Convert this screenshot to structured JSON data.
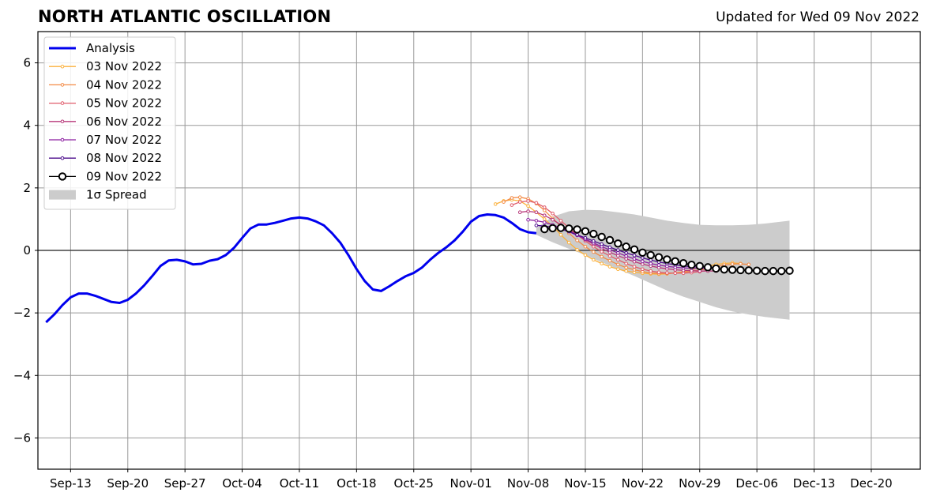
{
  "header": {
    "title": "NORTH ATLANTIC OSCILLATION",
    "updated": "Updated for Wed 09 Nov 2022"
  },
  "chart_data": {
    "type": "line",
    "title": "NORTH ATLANTIC OSCILLATION",
    "subtitle": "Updated for Wed 09 Nov 2022",
    "xlabel": "",
    "ylabel": "",
    "xlim": [
      "2022-09-09",
      "2022-12-26"
    ],
    "ylim": [
      -7,
      7
    ],
    "x_ticks": [
      "Sep-13",
      "Sep-20",
      "Sep-27",
      "Oct-04",
      "Oct-11",
      "Oct-18",
      "Oct-25",
      "Nov-01",
      "Nov-08",
      "Nov-15",
      "Nov-22",
      "Nov-29",
      "Dec-06",
      "Dec-13",
      "Dec-20"
    ],
    "y_ticks": [
      "6",
      "4",
      "2",
      "0",
      "−2",
      "−4",
      "−6"
    ],
    "grid": true,
    "legend_position": "top-left",
    "analysis": {
      "name": "Analysis",
      "color": "#0000ee",
      "x": [
        "2022-09-10",
        "2022-09-11",
        "2022-09-12",
        "2022-09-13",
        "2022-09-14",
        "2022-09-15",
        "2022-09-16",
        "2022-09-17",
        "2022-09-18",
        "2022-09-19",
        "2022-09-20",
        "2022-09-21",
        "2022-09-22",
        "2022-09-23",
        "2022-09-24",
        "2022-09-25",
        "2022-09-26",
        "2022-09-27",
        "2022-09-28",
        "2022-09-29",
        "2022-09-30",
        "2022-10-01",
        "2022-10-02",
        "2022-10-03",
        "2022-10-04",
        "2022-10-05",
        "2022-10-06",
        "2022-10-07",
        "2022-10-08",
        "2022-10-09",
        "2022-10-10",
        "2022-10-11",
        "2022-10-12",
        "2022-10-13",
        "2022-10-14",
        "2022-10-15",
        "2022-10-16",
        "2022-10-17",
        "2022-10-18",
        "2022-10-19",
        "2022-10-20",
        "2022-10-21",
        "2022-10-22",
        "2022-10-23",
        "2022-10-24",
        "2022-10-25",
        "2022-10-26",
        "2022-10-27",
        "2022-10-28",
        "2022-10-29",
        "2022-10-30",
        "2022-10-31",
        "2022-11-01",
        "2022-11-02",
        "2022-11-03",
        "2022-11-04",
        "2022-11-05",
        "2022-11-06",
        "2022-11-07",
        "2022-11-08",
        "2022-11-09"
      ],
      "y": [
        -2.3,
        -2.05,
        -1.75,
        -1.5,
        -1.38,
        -1.38,
        -1.45,
        -1.55,
        -1.65,
        -1.68,
        -1.58,
        -1.38,
        -1.12,
        -0.82,
        -0.5,
        -0.32,
        -0.3,
        -0.35,
        -0.45,
        -0.43,
        -0.33,
        -0.28,
        -0.15,
        0.08,
        0.4,
        0.7,
        0.83,
        0.83,
        0.88,
        0.95,
        1.02,
        1.05,
        1.02,
        0.93,
        0.8,
        0.55,
        0.25,
        -0.15,
        -0.6,
        -0.98,
        -1.25,
        -1.3,
        -1.15,
        -0.98,
        -0.83,
        -0.72,
        -0.55,
        -0.3,
        -0.08,
        0.1,
        0.32,
        0.6,
        0.92,
        1.1,
        1.15,
        1.13,
        1.05,
        0.88,
        0.68,
        0.58,
        0.55
      ]
    },
    "series": [
      {
        "name": "03 Nov 2022",
        "color": "#fbb13c",
        "x": [
          "2022-11-04",
          "2022-11-05",
          "2022-11-06",
          "2022-11-07",
          "2022-11-08",
          "2022-11-09",
          "2022-11-10",
          "2022-11-11",
          "2022-11-12",
          "2022-11-13",
          "2022-11-14",
          "2022-11-15",
          "2022-11-16",
          "2022-11-17",
          "2022-11-18",
          "2022-11-19",
          "2022-11-20",
          "2022-11-21",
          "2022-11-22",
          "2022-11-23",
          "2022-11-24",
          "2022-11-25",
          "2022-11-26",
          "2022-11-27",
          "2022-11-28",
          "2022-11-29",
          "2022-11-30",
          "2022-12-01",
          "2022-12-02",
          "2022-12-03",
          "2022-12-04"
        ],
        "y": [
          1.48,
          1.58,
          1.62,
          1.58,
          1.42,
          1.22,
          1.0,
          0.78,
          0.5,
          0.25,
          0.02,
          -0.15,
          -0.3,
          -0.42,
          -0.52,
          -0.6,
          -0.66,
          -0.7,
          -0.73,
          -0.75,
          -0.76,
          -0.75,
          -0.72,
          -0.68,
          -0.62,
          -0.56,
          -0.5,
          -0.45,
          -0.42,
          -0.4,
          -0.42
        ]
      },
      {
        "name": "04 Nov 2022",
        "color": "#f38a45",
        "x": [
          "2022-11-05",
          "2022-11-06",
          "2022-11-07",
          "2022-11-08",
          "2022-11-09",
          "2022-11-10",
          "2022-11-11",
          "2022-11-12",
          "2022-11-13",
          "2022-11-14",
          "2022-11-15",
          "2022-11-16",
          "2022-11-17",
          "2022-11-18",
          "2022-11-19",
          "2022-11-20",
          "2022-11-21",
          "2022-11-22",
          "2022-11-23",
          "2022-11-24",
          "2022-11-25",
          "2022-11-26",
          "2022-11-27",
          "2022-11-28",
          "2022-11-29",
          "2022-11-30",
          "2022-12-01",
          "2022-12-02",
          "2022-12-03",
          "2022-12-04",
          "2022-12-05"
        ],
        "y": [
          1.55,
          1.68,
          1.7,
          1.65,
          1.5,
          1.28,
          1.02,
          0.78,
          0.55,
          0.32,
          0.12,
          -0.05,
          -0.2,
          -0.33,
          -0.45,
          -0.55,
          -0.62,
          -0.68,
          -0.72,
          -0.74,
          -0.74,
          -0.72,
          -0.7,
          -0.67,
          -0.63,
          -0.58,
          -0.52,
          -0.47,
          -0.44,
          -0.43,
          -0.45
        ]
      },
      {
        "name": "05 Nov 2022",
        "color": "#e05c6b",
        "x": [
          "2022-11-06",
          "2022-11-07",
          "2022-11-08",
          "2022-11-09",
          "2022-11-10",
          "2022-11-11",
          "2022-11-12",
          "2022-11-13",
          "2022-11-14",
          "2022-11-15",
          "2022-11-16",
          "2022-11-17",
          "2022-11-18",
          "2022-11-19",
          "2022-11-20",
          "2022-11-21",
          "2022-11-22",
          "2022-11-23",
          "2022-11-24",
          "2022-11-25",
          "2022-11-26",
          "2022-11-27",
          "2022-11-28",
          "2022-11-29",
          "2022-11-30"
        ],
        "y": [
          1.45,
          1.55,
          1.58,
          1.52,
          1.38,
          1.18,
          0.95,
          0.72,
          0.5,
          0.3,
          0.12,
          -0.04,
          -0.18,
          -0.3,
          -0.42,
          -0.52,
          -0.6,
          -0.66,
          -0.7,
          -0.72,
          -0.73,
          -0.73,
          -0.71,
          -0.68,
          -0.64
        ]
      },
      {
        "name": "06 Nov 2022",
        "color": "#b73779",
        "x": [
          "2022-11-07",
          "2022-11-08",
          "2022-11-09",
          "2022-11-10",
          "2022-11-11",
          "2022-11-12",
          "2022-11-13",
          "2022-11-14",
          "2022-11-15",
          "2022-11-16",
          "2022-11-17",
          "2022-11-18",
          "2022-11-19",
          "2022-11-20",
          "2022-11-21",
          "2022-11-22",
          "2022-11-23",
          "2022-11-24",
          "2022-11-25",
          "2022-11-26",
          "2022-11-27",
          "2022-11-28",
          "2022-11-29",
          "2022-11-30",
          "2022-12-01"
        ],
        "y": [
          1.22,
          1.25,
          1.22,
          1.12,
          0.98,
          0.82,
          0.66,
          0.5,
          0.34,
          0.2,
          0.06,
          -0.06,
          -0.17,
          -0.27,
          -0.36,
          -0.44,
          -0.5,
          -0.55,
          -0.59,
          -0.62,
          -0.64,
          -0.65,
          -0.66,
          -0.66,
          -0.66
        ]
      },
      {
        "name": "07 Nov 2022",
        "color": "#8c1fa1",
        "x": [
          "2022-11-08",
          "2022-11-09",
          "2022-11-10",
          "2022-11-11",
          "2022-11-12",
          "2022-11-13",
          "2022-11-14",
          "2022-11-15",
          "2022-11-16",
          "2022-11-17",
          "2022-11-18",
          "2022-11-19",
          "2022-11-20",
          "2022-11-21",
          "2022-11-22",
          "2022-11-23",
          "2022-11-24",
          "2022-11-25",
          "2022-11-26",
          "2022-11-27",
          "2022-11-28",
          "2022-11-29",
          "2022-11-30"
        ],
        "y": [
          0.98,
          0.95,
          0.9,
          0.82,
          0.72,
          0.6,
          0.48,
          0.36,
          0.24,
          0.12,
          0.02,
          -0.08,
          -0.18,
          -0.27,
          -0.35,
          -0.42,
          -0.47,
          -0.51,
          -0.54,
          -0.56,
          -0.57,
          -0.58,
          -0.58
        ]
      },
      {
        "name": "08 Nov 2022",
        "color": "#4c0c8c",
        "x": [
          "2022-11-09",
          "2022-11-10",
          "2022-11-11",
          "2022-11-12",
          "2022-11-13",
          "2022-11-14",
          "2022-11-15",
          "2022-11-16",
          "2022-11-17",
          "2022-11-18",
          "2022-11-19",
          "2022-11-20",
          "2022-11-21",
          "2022-11-22",
          "2022-11-23",
          "2022-11-24",
          "2022-11-25",
          "2022-11-26",
          "2022-11-27",
          "2022-11-28",
          "2022-11-29",
          "2022-11-30",
          "2022-12-01"
        ],
        "y": [
          0.8,
          0.78,
          0.74,
          0.68,
          0.6,
          0.5,
          0.4,
          0.3,
          0.2,
          0.1,
          0.01,
          -0.08,
          -0.16,
          -0.24,
          -0.31,
          -0.37,
          -0.42,
          -0.46,
          -0.5,
          -0.52,
          -0.54,
          -0.55,
          -0.55
        ]
      },
      {
        "name": "09 Nov 2022",
        "color": "#000000",
        "x": [
          "2022-11-10",
          "2022-11-11",
          "2022-11-12",
          "2022-11-13",
          "2022-11-14",
          "2022-11-15",
          "2022-11-16",
          "2022-11-17",
          "2022-11-18",
          "2022-11-19",
          "2022-11-20",
          "2022-11-21",
          "2022-11-22",
          "2022-11-23",
          "2022-11-24",
          "2022-11-25",
          "2022-11-26",
          "2022-11-27",
          "2022-11-28",
          "2022-11-29",
          "2022-11-30",
          "2022-12-01",
          "2022-12-02",
          "2022-12-03",
          "2022-12-04",
          "2022-12-05",
          "2022-12-06",
          "2022-12-07",
          "2022-12-08",
          "2022-12-09",
          "2022-12-10"
        ],
        "y": [
          0.68,
          0.71,
          0.72,
          0.7,
          0.67,
          0.61,
          0.53,
          0.43,
          0.33,
          0.22,
          0.12,
          0.03,
          -0.07,
          -0.15,
          -0.22,
          -0.29,
          -0.35,
          -0.41,
          -0.46,
          -0.5,
          -0.54,
          -0.58,
          -0.61,
          -0.62,
          -0.63,
          -0.64,
          -0.65,
          -0.66,
          -0.66,
          -0.66,
          -0.65
        ]
      }
    ],
    "spread": {
      "name": "1σ Spread",
      "color": "#cccccc",
      "x": [
        "2022-11-09",
        "2022-11-11",
        "2022-11-13",
        "2022-11-15",
        "2022-11-17",
        "2022-11-19",
        "2022-11-21",
        "2022-11-23",
        "2022-11-25",
        "2022-11-27",
        "2022-11-29",
        "2022-12-01",
        "2022-12-03",
        "2022-12-05",
        "2022-12-07",
        "2022-12-10"
      ],
      "upper": [
        0.72,
        1.08,
        1.25,
        1.3,
        1.28,
        1.22,
        1.15,
        1.05,
        0.95,
        0.88,
        0.82,
        0.8,
        0.8,
        0.82,
        0.86,
        0.95
      ],
      "lower": [
        0.5,
        0.26,
        0.05,
        -0.15,
        -0.38,
        -0.6,
        -0.82,
        -1.05,
        -1.28,
        -1.48,
        -1.65,
        -1.82,
        -1.95,
        -2.05,
        -2.13,
        -2.22
      ]
    }
  }
}
